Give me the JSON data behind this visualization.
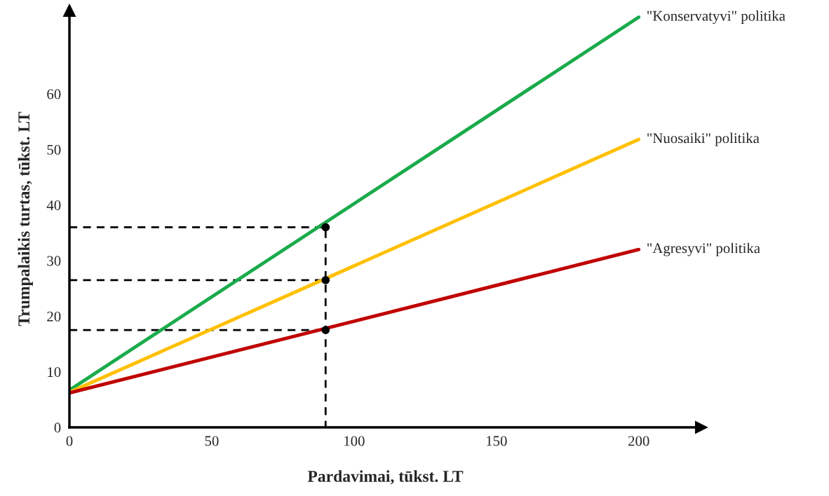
{
  "chart_data": {
    "type": "line",
    "xlabel": "Pardavimai, tūkst. LT",
    "ylabel": "Trumpalaikis turtas, tūkst. LT",
    "xlim": [
      0,
      222
    ],
    "ylim": [
      0,
      75
    ],
    "xticks": [
      0,
      50,
      100,
      150,
      200
    ],
    "yticks": [
      0,
      10,
      20,
      30,
      40,
      50,
      60
    ],
    "grid": false,
    "legend": false,
    "marker": "none",
    "line_style": "solid",
    "series": [
      {
        "name": "\"Konservatyvi\" politika",
        "color": "#1aab4b",
        "x": [
          0,
          200
        ],
        "values": [
          6.7,
          73.8
        ]
      },
      {
        "name": "\"Nuosaiki\" politika",
        "color": "#ffc000",
        "x": [
          0,
          200
        ],
        "values": [
          6.3,
          51.8
        ]
      },
      {
        "name": "\"Agresyvi\" politika",
        "color": "#c00000",
        "x": [
          0,
          200
        ],
        "values": [
          6.2,
          32
        ]
      },
      {
        "type": "line",
        "color": "#000000",
        "line_style": "dashed",
        "x": [
          0,
          90,
          90
        ],
        "values": [
          36,
          36,
          0
        ]
      },
      {
        "type": "line",
        "color": "#000000",
        "line_style": "dashed",
        "x": [
          0,
          90
        ],
        "values": [
          26.5,
          26.5
        ]
      },
      {
        "type": "line",
        "color": "#000000",
        "line_style": "dashed",
        "x": [
          0,
          90
        ],
        "values": [
          17.5,
          17.5
        ]
      },
      {
        "type": "scatter",
        "color": "#000000",
        "marker": "circle",
        "x": [
          90,
          90,
          90
        ],
        "values": [
          36,
          26.5,
          17.5
        ]
      }
    ]
  }
}
